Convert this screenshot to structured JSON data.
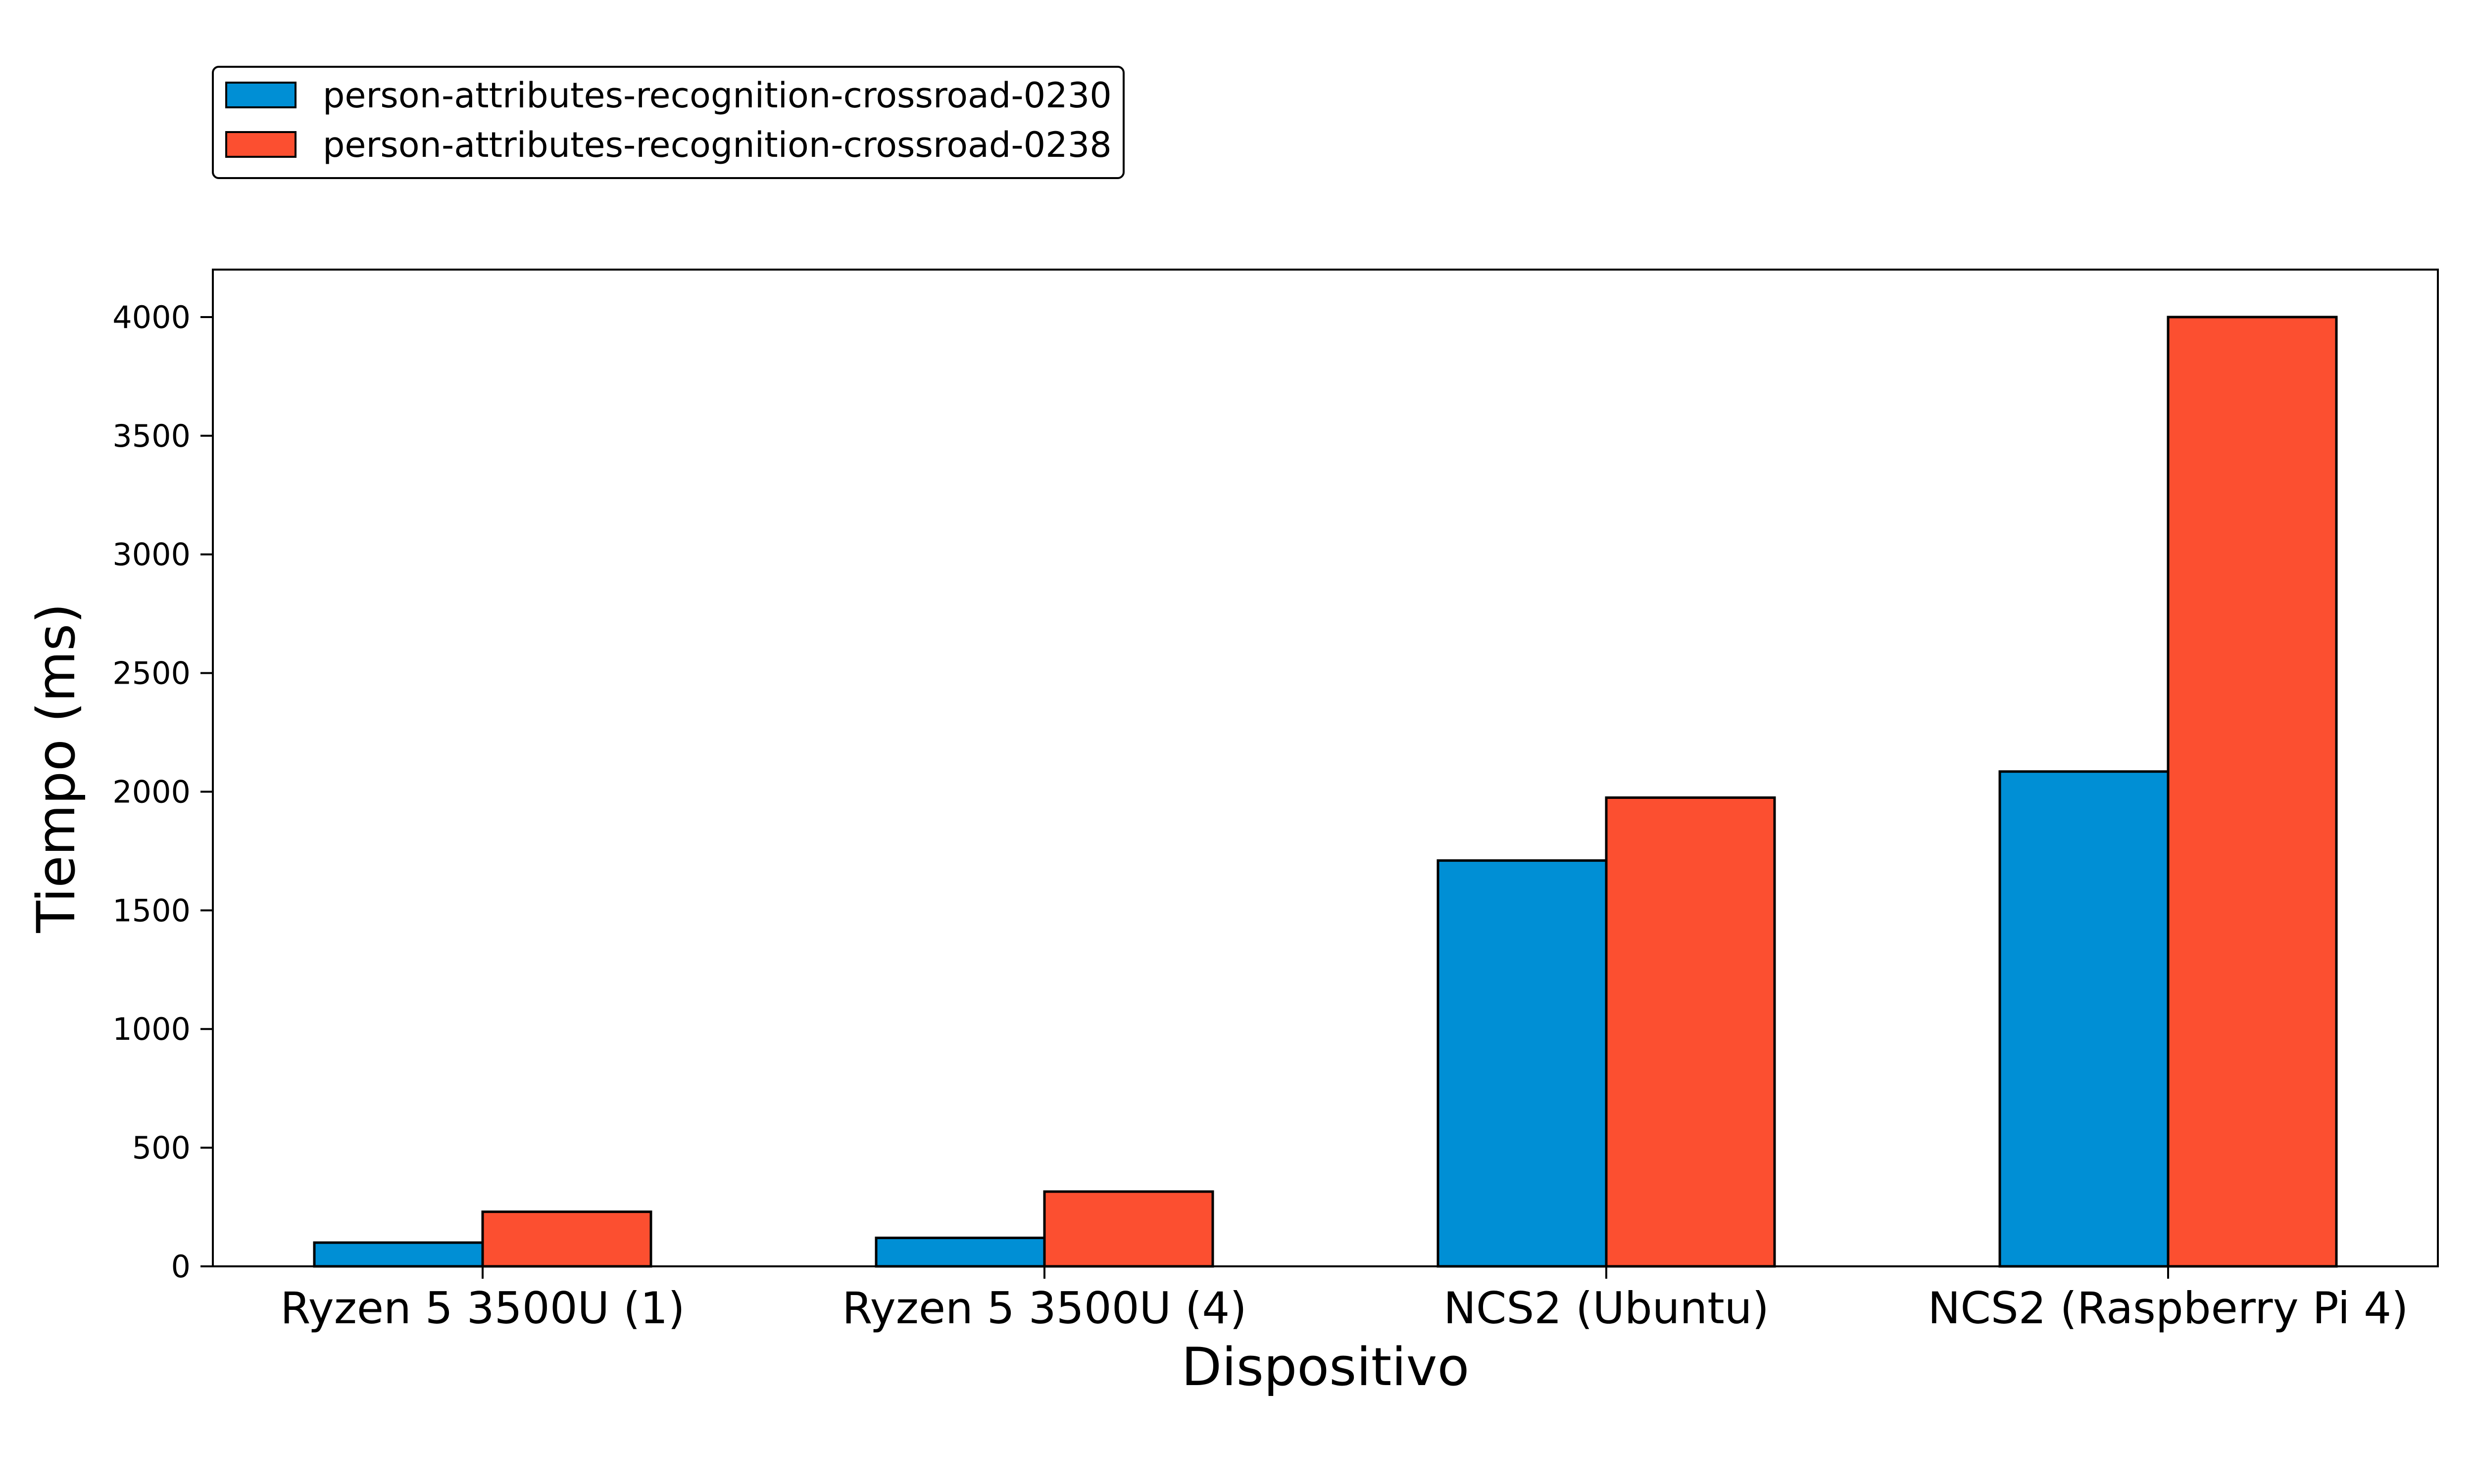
{
  "chart_data": {
    "type": "bar",
    "title": "",
    "xlabel": "Dispositivo",
    "ylabel": "Tiempo (ms)",
    "categories": [
      "Ryzen 5 3500U (1)",
      "Ryzen 5 3500U (4)",
      "NCS2 (Ubuntu)",
      "NCS2 (Raspberry Pi 4)"
    ],
    "series": [
      {
        "name": "person-attributes-recognition-crossroad-0230",
        "color": "#008fd5",
        "values": [
          100,
          120,
          1710,
          2085
        ]
      },
      {
        "name": "person-attributes-recognition-crossroad-0238",
        "color": "#fc4f30",
        "values": [
          230,
          315,
          1975,
          4000
        ]
      }
    ],
    "ylim": [
      0,
      4200
    ],
    "yticks": [
      0,
      500,
      1000,
      1500,
      2000,
      2500,
      3000,
      3500,
      4000
    ],
    "grid": false,
    "legend_position": "top-left, above plot"
  }
}
